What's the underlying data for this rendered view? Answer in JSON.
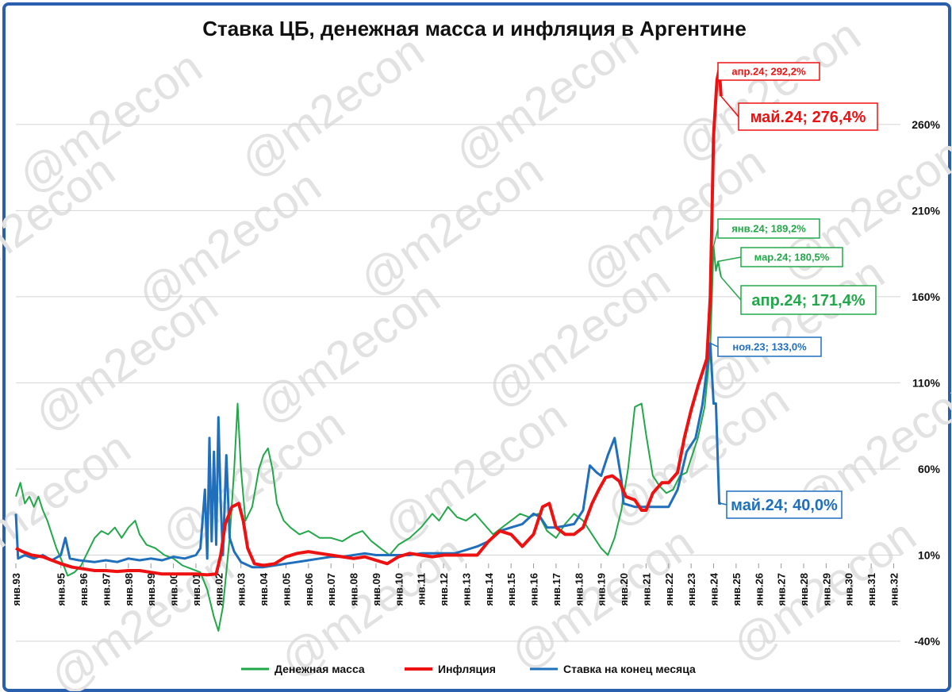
{
  "chart_data": {
    "type": "line",
    "title": "Ставка ЦБ, денежная масса и инфляция в Аргентине",
    "watermark": "@m2econ",
    "yunit": "%",
    "ylim": [
      -40,
      300
    ],
    "yticks": [
      -40,
      10,
      60,
      110,
      160,
      210,
      260
    ],
    "ytick_labels": [
      "-40%",
      "10%",
      "60%",
      "110%",
      "160%",
      "210%",
      "260%"
    ],
    "xlim": [
      1993.0,
      2032.3
    ],
    "xtick_labels": [
      "янв.93",
      "янв.95",
      "янв.96",
      "янв.97",
      "янв.98",
      "янв.99",
      "янв.00",
      "янв.01",
      "янв.02",
      "янв.03",
      "янв.04",
      "янв.05",
      "янв.06",
      "янв.07",
      "янв.08",
      "янв.09",
      "янв.10",
      "янв.11",
      "янв.12",
      "янв.13",
      "янв.14",
      "янв.15",
      "янв.16",
      "янв.17",
      "янв.18",
      "янв.19",
      "янв.20",
      "янв.21",
      "янв.22",
      "янв.23",
      "янв.24",
      "янв.25",
      "янв.26",
      "янв.27",
      "янв.28",
      "янв.29",
      "янв.30",
      "янв.31",
      "янв.32"
    ],
    "xtick_values": [
      1993,
      1995,
      1996,
      1997,
      1998,
      1999,
      2000,
      2001,
      2002,
      2003,
      2004,
      2005,
      2006,
      2007,
      2008,
      2009,
      2010,
      2011,
      2012,
      2013,
      2014,
      2015,
      2016,
      2017,
      2018,
      2019,
      2020,
      2021,
      2022,
      2023,
      2024,
      2025,
      2026,
      2027,
      2028,
      2029,
      2030,
      2031,
      2032
    ],
    "colors": {
      "money": "#22a84a",
      "inflation": "#ee1111",
      "rate": "#1f6fbd",
      "grid": "#d4d4d4",
      "frame": "#2a5fae"
    },
    "series": [
      {
        "name": "Денежная масса",
        "key": "money",
        "points": [
          [
            1993.0,
            44
          ],
          [
            1993.2,
            52
          ],
          [
            1993.4,
            40
          ],
          [
            1993.6,
            44
          ],
          [
            1993.8,
            38
          ],
          [
            1994.0,
            44
          ],
          [
            1994.2,
            36
          ],
          [
            1994.4,
            30
          ],
          [
            1994.6,
            22
          ],
          [
            1994.8,
            14
          ],
          [
            1995.0,
            8
          ],
          [
            1995.3,
            -2
          ],
          [
            1995.6,
            0
          ],
          [
            1995.9,
            4
          ],
          [
            1996.2,
            12
          ],
          [
            1996.5,
            20
          ],
          [
            1996.8,
            24
          ],
          [
            1997.1,
            22
          ],
          [
            1997.4,
            26
          ],
          [
            1997.7,
            20
          ],
          [
            1998.0,
            26
          ],
          [
            1998.3,
            30
          ],
          [
            1998.5,
            22
          ],
          [
            1998.8,
            16
          ],
          [
            1999.2,
            14
          ],
          [
            1999.6,
            10
          ],
          [
            2000.0,
            8
          ],
          [
            2000.4,
            4
          ],
          [
            2000.8,
            2
          ],
          [
            2001.2,
            0
          ],
          [
            2001.5,
            -10
          ],
          [
            2001.8,
            -26
          ],
          [
            2002.0,
            -34
          ],
          [
            2002.2,
            -20
          ],
          [
            2002.5,
            20
          ],
          [
            2002.7,
            60
          ],
          [
            2002.85,
            98
          ],
          [
            2003.0,
            60
          ],
          [
            2003.2,
            30
          ],
          [
            2003.5,
            38
          ],
          [
            2003.8,
            60
          ],
          [
            2004.0,
            68
          ],
          [
            2004.2,
            72
          ],
          [
            2004.4,
            60
          ],
          [
            2004.6,
            40
          ],
          [
            2004.9,
            30
          ],
          [
            2005.2,
            26
          ],
          [
            2005.6,
            22
          ],
          [
            2006.0,
            24
          ],
          [
            2006.5,
            20
          ],
          [
            2007.0,
            20
          ],
          [
            2007.5,
            18
          ],
          [
            2008.0,
            22
          ],
          [
            2008.4,
            24
          ],
          [
            2008.8,
            18
          ],
          [
            2009.2,
            14
          ],
          [
            2009.6,
            10
          ],
          [
            2010.0,
            16
          ],
          [
            2010.5,
            20
          ],
          [
            2011.0,
            26
          ],
          [
            2011.5,
            34
          ],
          [
            2011.8,
            30
          ],
          [
            2012.2,
            38
          ],
          [
            2012.6,
            32
          ],
          [
            2013.0,
            30
          ],
          [
            2013.4,
            34
          ],
          [
            2013.8,
            28
          ],
          [
            2014.2,
            22
          ],
          [
            2014.6,
            26
          ],
          [
            2015.0,
            30
          ],
          [
            2015.4,
            34
          ],
          [
            2015.8,
            32
          ],
          [
            2016.2,
            34
          ],
          [
            2016.6,
            24
          ],
          [
            2017.0,
            20
          ],
          [
            2017.4,
            28
          ],
          [
            2017.8,
            34
          ],
          [
            2018.2,
            30
          ],
          [
            2018.6,
            22
          ],
          [
            2019.0,
            14
          ],
          [
            2019.3,
            10
          ],
          [
            2019.6,
            20
          ],
          [
            2019.9,
            36
          ],
          [
            2020.2,
            60
          ],
          [
            2020.5,
            96
          ],
          [
            2020.8,
            98
          ],
          [
            2021.0,
            80
          ],
          [
            2021.3,
            56
          ],
          [
            2021.6,
            50
          ],
          [
            2021.9,
            46
          ],
          [
            2022.2,
            48
          ],
          [
            2022.5,
            56
          ],
          [
            2022.8,
            58
          ],
          [
            2023.0,
            66
          ],
          [
            2023.3,
            78
          ],
          [
            2023.6,
            96
          ],
          [
            2023.85,
            130
          ],
          [
            2024.0,
            189.2
          ],
          [
            2024.1,
            175
          ],
          [
            2024.2,
            180.5
          ],
          [
            2024.33,
            171.4
          ]
        ]
      },
      {
        "name": "Инфляция",
        "key": "inflation",
        "points": [
          [
            1993.0,
            14
          ],
          [
            1993.3,
            12
          ],
          [
            1993.7,
            10
          ],
          [
            1994.2,
            9
          ],
          [
            1994.6,
            7
          ],
          [
            1995.0,
            5
          ],
          [
            1995.5,
            3
          ],
          [
            1996.0,
            2
          ],
          [
            1996.5,
            1
          ],
          [
            1997.0,
            1
          ],
          [
            1997.5,
            0.5
          ],
          [
            1998.0,
            1
          ],
          [
            1998.5,
            1
          ],
          [
            1999.0,
            0
          ],
          [
            1999.5,
            -1
          ],
          [
            2000.0,
            -1
          ],
          [
            2000.5,
            -1
          ],
          [
            2001.0,
            -1
          ],
          [
            2001.5,
            -1.5
          ],
          [
            2001.9,
            -1
          ],
          [
            2002.1,
            10
          ],
          [
            2002.3,
            28
          ],
          [
            2002.6,
            38
          ],
          [
            2002.9,
            40
          ],
          [
            2003.1,
            30
          ],
          [
            2003.3,
            14
          ],
          [
            2003.6,
            5
          ],
          [
            2004.0,
            4
          ],
          [
            2004.5,
            5
          ],
          [
            2005.0,
            9
          ],
          [
            2005.5,
            11
          ],
          [
            2006.0,
            12
          ],
          [
            2006.5,
            11
          ],
          [
            2007.0,
            10
          ],
          [
            2007.5,
            9
          ],
          [
            2008.0,
            8
          ],
          [
            2008.5,
            9
          ],
          [
            2009.0,
            7
          ],
          [
            2009.5,
            5
          ],
          [
            2010.0,
            9
          ],
          [
            2010.5,
            11
          ],
          [
            2011.0,
            10
          ],
          [
            2011.5,
            9
          ],
          [
            2012.0,
            10
          ],
          [
            2012.5,
            10
          ],
          [
            2013.0,
            10
          ],
          [
            2013.5,
            10
          ],
          [
            2014.0,
            18
          ],
          [
            2014.5,
            24
          ],
          [
            2015.0,
            22
          ],
          [
            2015.5,
            15
          ],
          [
            2016.0,
            22
          ],
          [
            2016.4,
            38
          ],
          [
            2016.7,
            40
          ],
          [
            2017.0,
            26
          ],
          [
            2017.4,
            22
          ],
          [
            2017.8,
            22
          ],
          [
            2018.2,
            26
          ],
          [
            2018.6,
            40
          ],
          [
            2018.9,
            48
          ],
          [
            2019.2,
            55
          ],
          [
            2019.5,
            56
          ],
          [
            2019.8,
            53
          ],
          [
            2020.1,
            44
          ],
          [
            2020.5,
            42
          ],
          [
            2020.8,
            36
          ],
          [
            2021.0,
            36
          ],
          [
            2021.3,
            46
          ],
          [
            2021.7,
            52
          ],
          [
            2022.0,
            52
          ],
          [
            2022.4,
            58
          ],
          [
            2022.7,
            78
          ],
          [
            2023.0,
            94
          ],
          [
            2023.3,
            108
          ],
          [
            2023.5,
            116
          ],
          [
            2023.7,
            124
          ],
          [
            2023.85,
            160
          ],
          [
            2024.0,
            254
          ],
          [
            2024.15,
            286
          ],
          [
            2024.25,
            292.2
          ],
          [
            2024.33,
            276.4
          ]
        ]
      },
      {
        "name": "Ставка на конец месяца",
        "key": "rate",
        "points": [
          [
            1993.0,
            34
          ],
          [
            1993.1,
            8
          ],
          [
            1993.4,
            10
          ],
          [
            1993.8,
            8
          ],
          [
            1994.2,
            10
          ],
          [
            1994.6,
            7
          ],
          [
            1995.0,
            10
          ],
          [
            1995.2,
            20
          ],
          [
            1995.4,
            8
          ],
          [
            1995.8,
            7
          ],
          [
            1996.5,
            6
          ],
          [
            1997.0,
            7
          ],
          [
            1997.5,
            6
          ],
          [
            1998.0,
            8
          ],
          [
            1998.5,
            7
          ],
          [
            1999.0,
            8
          ],
          [
            1999.5,
            7
          ],
          [
            2000.0,
            9
          ],
          [
            2000.5,
            8
          ],
          [
            2001.0,
            10
          ],
          [
            2001.2,
            14
          ],
          [
            2001.4,
            48
          ],
          [
            2001.5,
            8
          ],
          [
            2001.6,
            78
          ],
          [
            2001.7,
            18
          ],
          [
            2001.8,
            70
          ],
          [
            2001.9,
            16
          ],
          [
            2002.0,
            90
          ],
          [
            2002.1,
            40
          ],
          [
            2002.2,
            10
          ],
          [
            2002.35,
            68
          ],
          [
            2002.5,
            20
          ],
          [
            2002.7,
            12
          ],
          [
            2003.0,
            6
          ],
          [
            2003.5,
            3
          ],
          [
            2004.0,
            3
          ],
          [
            2004.5,
            4
          ],
          [
            2005.0,
            5
          ],
          [
            2005.5,
            6
          ],
          [
            2006.0,
            7
          ],
          [
            2006.5,
            8
          ],
          [
            2007.0,
            9
          ],
          [
            2007.5,
            9
          ],
          [
            2008.0,
            10
          ],
          [
            2008.5,
            11
          ],
          [
            2009.0,
            10
          ],
          [
            2009.5,
            10
          ],
          [
            2010.0,
            10
          ],
          [
            2010.5,
            10
          ],
          [
            2011.0,
            11
          ],
          [
            2011.5,
            11
          ],
          [
            2012.0,
            11
          ],
          [
            2012.5,
            11
          ],
          [
            2013.0,
            13
          ],
          [
            2013.5,
            15
          ],
          [
            2014.0,
            18
          ],
          [
            2014.5,
            24
          ],
          [
            2015.0,
            26
          ],
          [
            2015.5,
            28
          ],
          [
            2016.0,
            34
          ],
          [
            2016.3,
            32
          ],
          [
            2016.6,
            26
          ],
          [
            2017.0,
            26
          ],
          [
            2017.4,
            27
          ],
          [
            2017.8,
            28
          ],
          [
            2018.2,
            36
          ],
          [
            2018.5,
            62
          ],
          [
            2018.8,
            58
          ],
          [
            2019.0,
            56
          ],
          [
            2019.3,
            68
          ],
          [
            2019.6,
            78
          ],
          [
            2019.9,
            54
          ],
          [
            2020.0,
            40
          ],
          [
            2020.5,
            38
          ],
          [
            2021.0,
            38
          ],
          [
            2021.5,
            38
          ],
          [
            2022.0,
            38
          ],
          [
            2022.4,
            48
          ],
          [
            2022.8,
            70
          ],
          [
            2023.2,
            78
          ],
          [
            2023.5,
            97
          ],
          [
            2023.7,
            118
          ],
          [
            2023.85,
            133
          ],
          [
            2024.0,
            98
          ],
          [
            2024.1,
            98
          ],
          [
            2024.25,
            40
          ],
          [
            2024.33,
            40
          ]
        ]
      }
    ],
    "annotations": [
      {
        "key": "inflation",
        "text": "апр.24; 292,2%",
        "x": 2024.25,
        "y": 292.2,
        "size": "small"
      },
      {
        "key": "inflation",
        "text": "май.24; 276,4%",
        "x": 2024.33,
        "y": 276.4,
        "size": "large"
      },
      {
        "key": "money",
        "text": "янв.24; 189,2%",
        "x": 2024.0,
        "y": 189.2,
        "size": "small"
      },
      {
        "key": "money",
        "text": "мар.24; 180,5%",
        "x": 2024.2,
        "y": 180.5,
        "size": "small"
      },
      {
        "key": "money",
        "text": "апр.24; 171,4%",
        "x": 2024.33,
        "y": 171.4,
        "size": "large"
      },
      {
        "key": "rate",
        "text": "ноя.23; 133,0%",
        "x": 2023.85,
        "y": 133.0,
        "size": "small"
      },
      {
        "key": "rate",
        "text": "май.24; 40,0%",
        "x": 2024.33,
        "y": 40.0,
        "size": "large"
      }
    ],
    "legend": {
      "position": "bottom",
      "items": [
        {
          "key": "money",
          "label": "Денежная масса"
        },
        {
          "key": "inflation",
          "label": "Инфляция"
        },
        {
          "key": "rate",
          "label": "Ставка на конец месяца"
        }
      ]
    },
    "grid": true
  }
}
